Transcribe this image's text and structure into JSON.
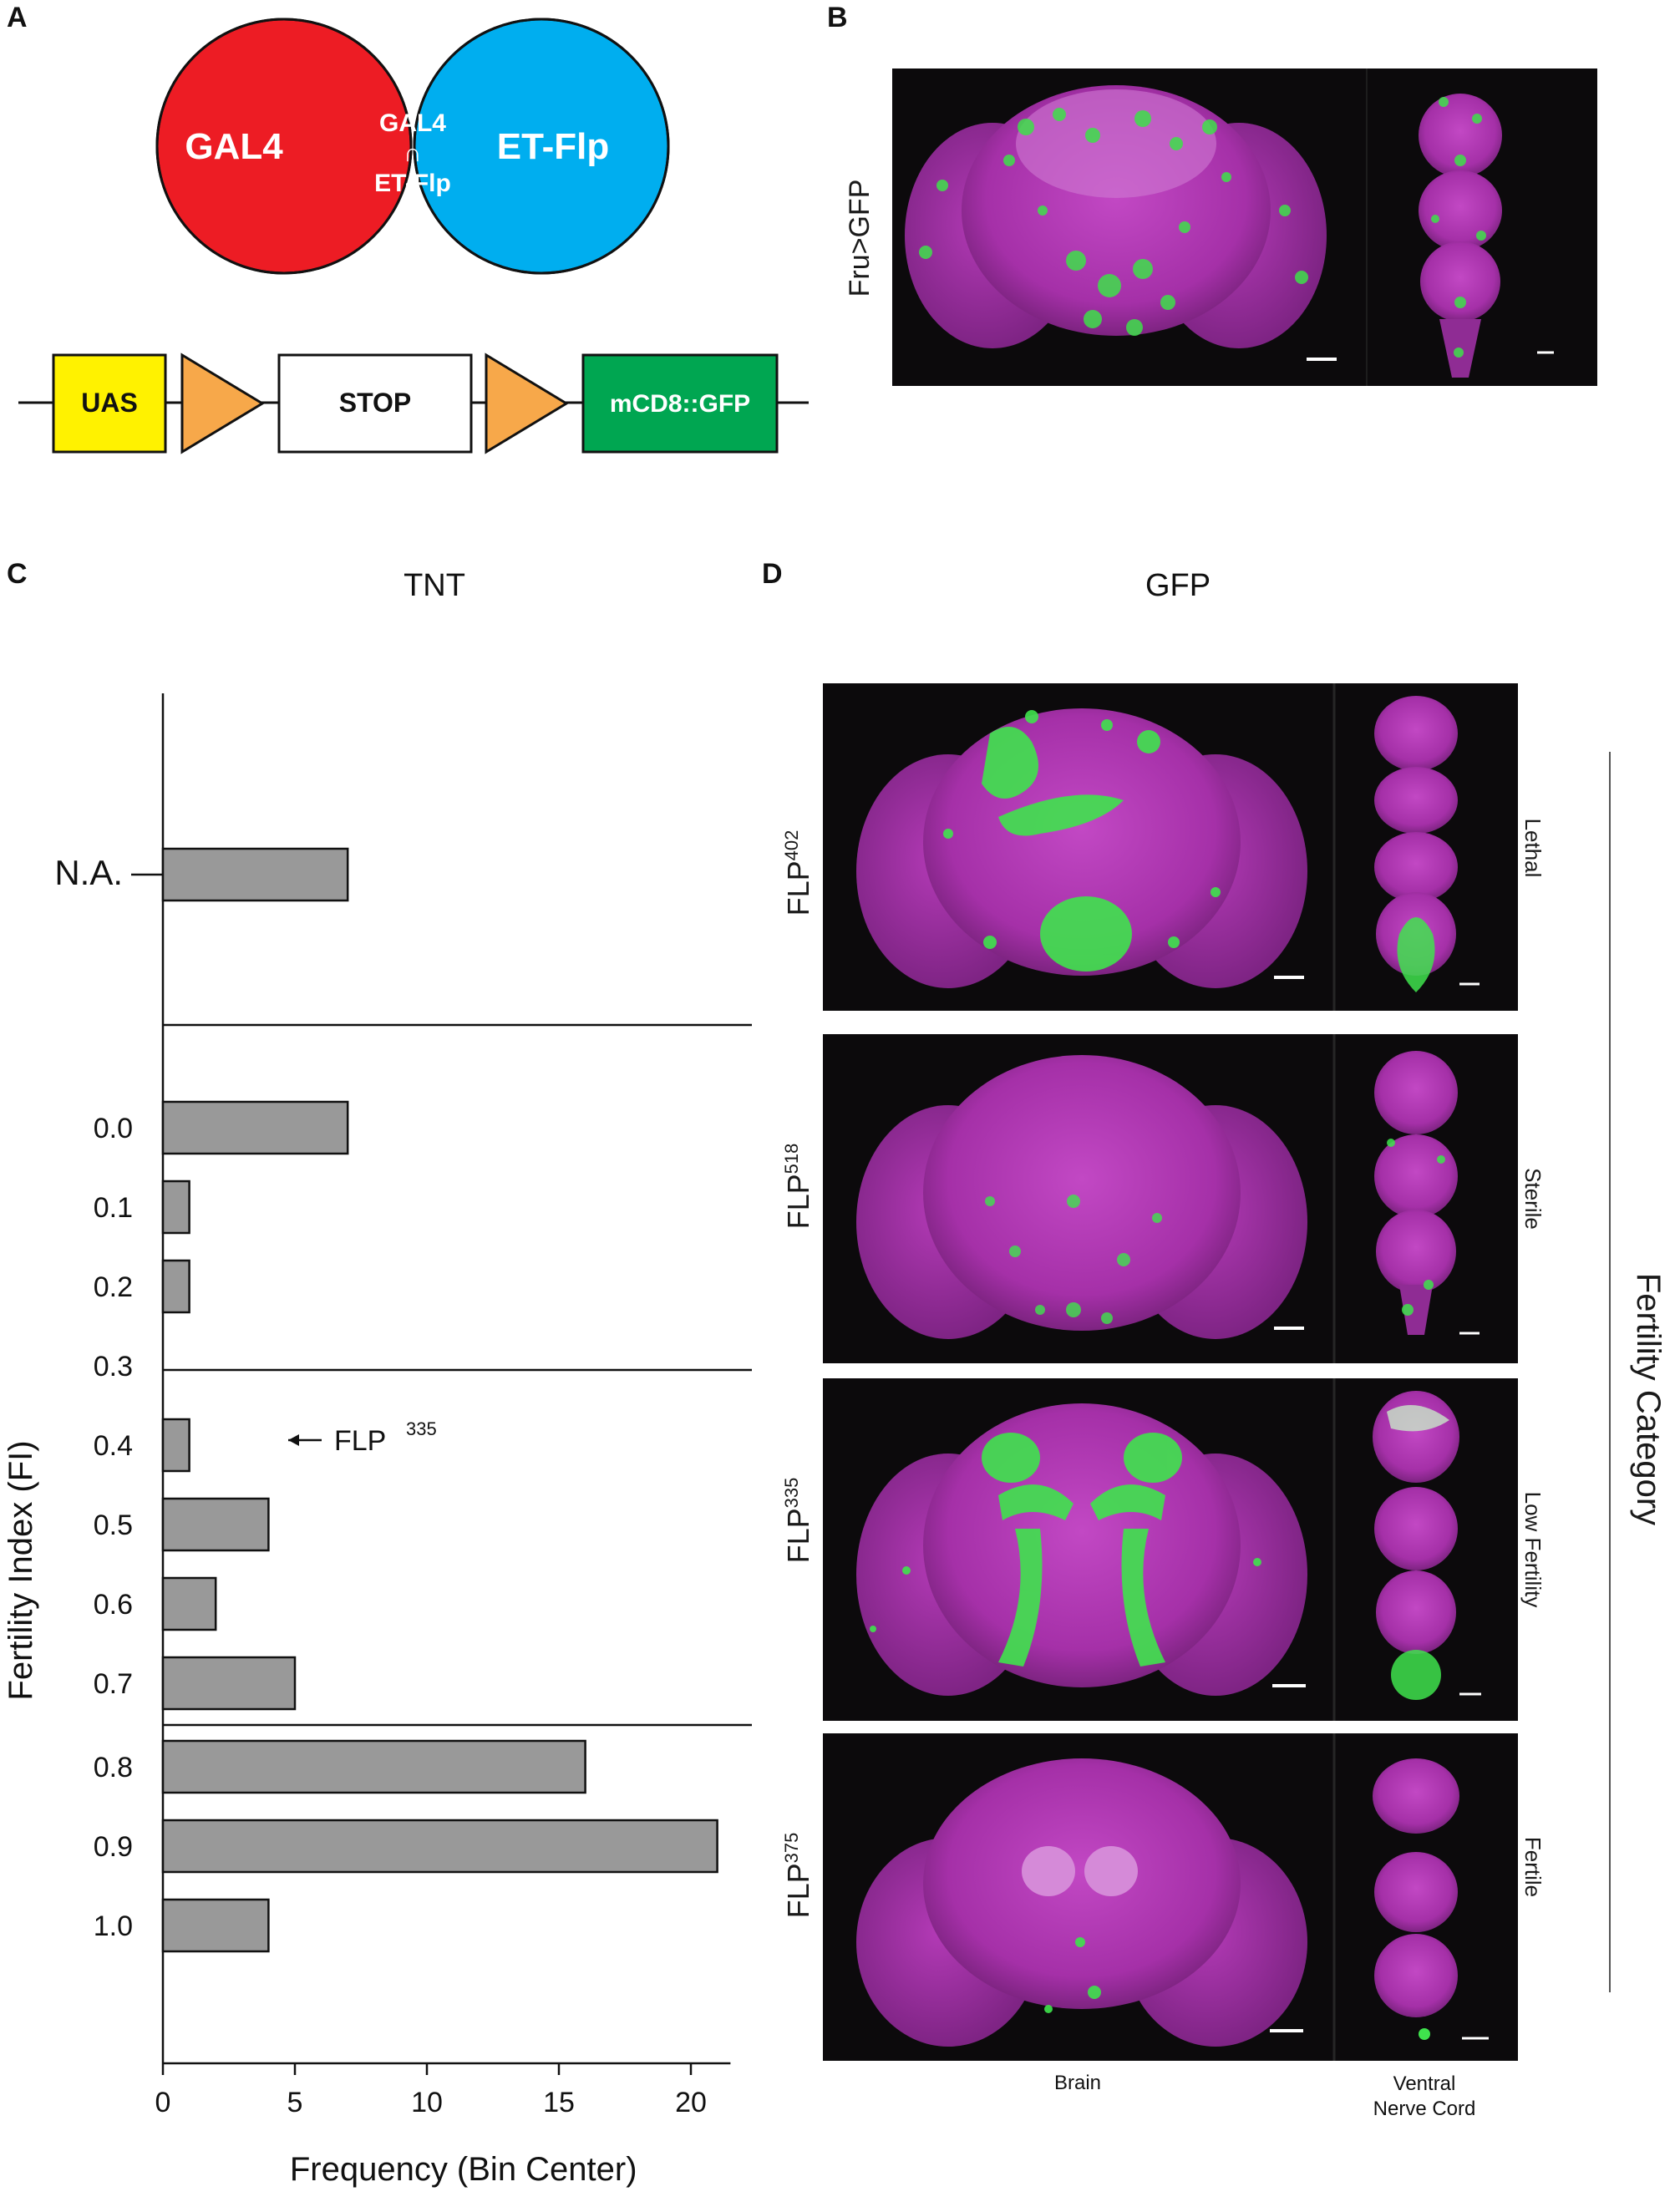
{
  "panel_labels": {
    "a": "A",
    "b": "B",
    "c": "C",
    "d": "D"
  },
  "panel_a": {
    "venn": {
      "left": "GAL4",
      "intersection_line1": "GAL4",
      "intersection_line2": "∩",
      "intersection_line3": "ET-Flp",
      "right": "ET-Flp"
    },
    "construct": {
      "uas": "UAS",
      "stop": "STOP",
      "reporter": "mCD8::GFP"
    },
    "colors": {
      "gal4": "#ed1c24",
      "etflp": "#00aeef",
      "intersection": "#00a651",
      "uas": "#fff200",
      "frt": "#f7a84a",
      "reporter": "#00a651"
    }
  },
  "panel_b": {
    "side_label": "Fru>GFP"
  },
  "panel_c": {
    "title": "TNT",
    "chart_data": {
      "type": "bar",
      "orientation": "horizontal",
      "title": "TNT",
      "xlabel": "Frequency (Bin Center)",
      "ylabel": "Fertility Index (FI)",
      "xlim": [
        0,
        21.5
      ],
      "xticks": [
        "0",
        "5",
        "10",
        "15",
        "20"
      ],
      "categories": [
        "N.A.",
        "0.0",
        "0.1",
        "0.2",
        "0.3",
        "0.4",
        "0.5",
        "0.6",
        "0.7",
        "0.8",
        "0.9",
        "1.0"
      ],
      "values": [
        7,
        7,
        1,
        1,
        0,
        1,
        4,
        2,
        5,
        16,
        21,
        4
      ],
      "bar_color": "#999999",
      "annotation": {
        "text": "FLP",
        "superscript": "335",
        "points_to": "0.4"
      }
    }
  },
  "panel_d": {
    "title": "GFP",
    "rows": [
      {
        "line": "FLP",
        "sup": "402",
        "category": "Lethal"
      },
      {
        "line": "FLP",
        "sup": "518",
        "category": "Sterile"
      },
      {
        "line": "FLP",
        "sup": "335",
        "category": "Low Fertility"
      },
      {
        "line": "FLP",
        "sup": "375",
        "category": "Fertile"
      }
    ],
    "bottom_labels": {
      "brain": "Brain",
      "vnc_line1": "Ventral",
      "vnc_line2": "Nerve Cord"
    },
    "category_axis_label": "Fertility Category"
  }
}
